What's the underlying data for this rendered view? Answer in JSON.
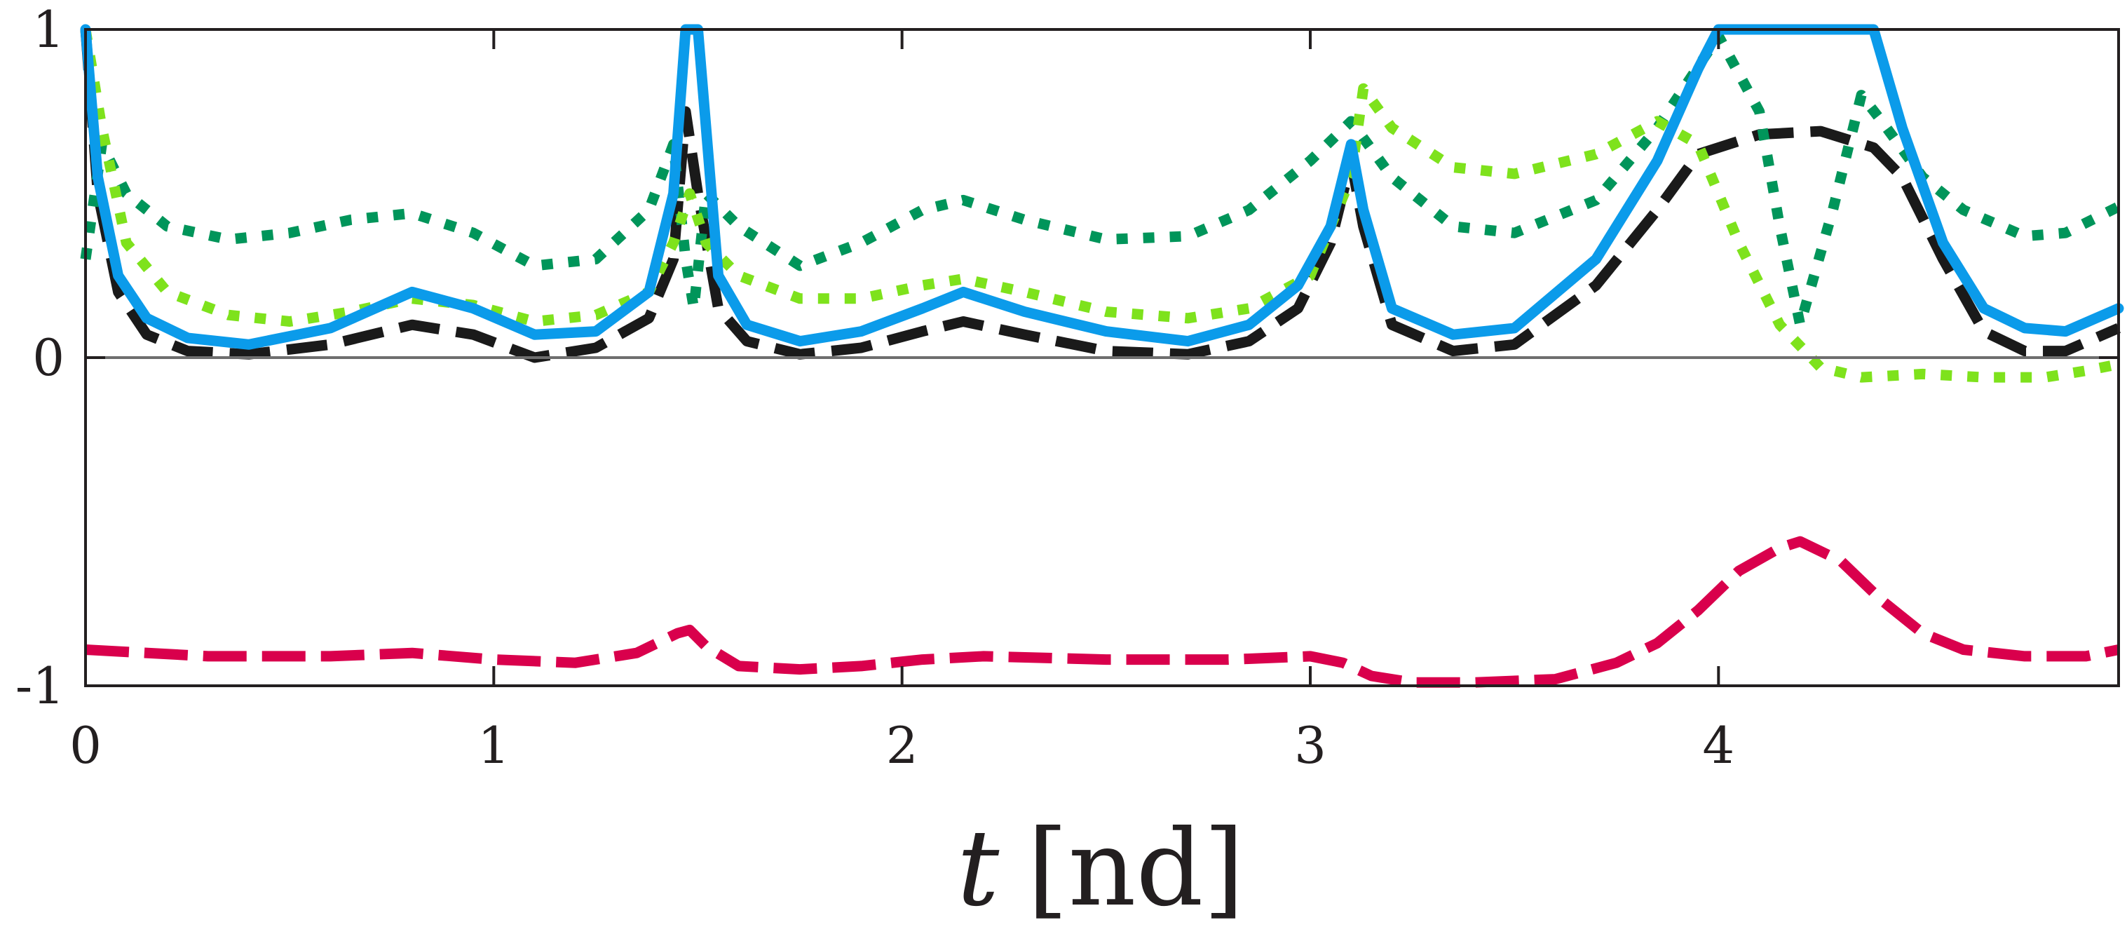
{
  "chart_data": {
    "type": "line",
    "title": "",
    "xlabel_var": "t",
    "xlabel_unit": "[nd]",
    "ylabel": "",
    "xlim": [
      0,
      4.98
    ],
    "ylim": [
      -1,
      1
    ],
    "xticks": [
      0,
      1,
      2,
      3,
      4
    ],
    "xtick_labels": [
      "0",
      "1",
      "2",
      "3",
      "4"
    ],
    "yticks": [
      -1,
      0,
      1
    ],
    "ytick_labels": [
      "-1",
      "0",
      "1"
    ],
    "zero_line": true,
    "grid": false,
    "legend": "none",
    "series": [
      {
        "name": "series-black-dashed",
        "color": "#1a1a1a",
        "style": "dashed",
        "x": [
          0,
          0.03,
          0.08,
          0.15,
          0.25,
          0.4,
          0.6,
          0.8,
          0.95,
          1.1,
          1.25,
          1.38,
          1.44,
          1.47,
          1.5,
          1.55,
          1.62,
          1.75,
          1.9,
          2.05,
          2.15,
          2.3,
          2.5,
          2.7,
          2.85,
          2.97,
          3.05,
          3.1,
          3.13,
          3.2,
          3.35,
          3.5,
          3.7,
          3.85,
          3.95,
          4.1,
          4.25,
          4.38,
          4.45,
          4.55,
          4.65,
          4.75,
          4.85,
          4.98
        ],
        "y": [
          1.0,
          0.5,
          0.2,
          0.07,
          0.02,
          0.01,
          0.04,
          0.1,
          0.07,
          0.0,
          0.03,
          0.12,
          0.3,
          0.75,
          0.5,
          0.15,
          0.05,
          0.01,
          0.03,
          0.08,
          0.11,
          0.07,
          0.02,
          0.01,
          0.05,
          0.15,
          0.35,
          0.6,
          0.4,
          0.1,
          0.02,
          0.04,
          0.22,
          0.45,
          0.62,
          0.68,
          0.69,
          0.64,
          0.55,
          0.3,
          0.08,
          0.02,
          0.02,
          0.09
        ]
      },
      {
        "name": "series-blue-solid",
        "color": "#0b9bea",
        "style": "solid",
        "x": [
          0,
          0.03,
          0.08,
          0.15,
          0.25,
          0.4,
          0.6,
          0.8,
          0.95,
          1.1,
          1.25,
          1.38,
          1.44,
          1.47,
          1.5,
          1.55,
          1.62,
          1.75,
          1.9,
          2.05,
          2.15,
          2.3,
          2.5,
          2.7,
          2.85,
          2.97,
          3.05,
          3.1,
          3.13,
          3.2,
          3.35,
          3.5,
          3.7,
          3.85,
          3.95,
          4.0,
          4.38,
          4.45,
          4.55,
          4.65,
          4.75,
          4.85,
          4.98
        ],
        "y": [
          1.0,
          0.55,
          0.25,
          0.12,
          0.06,
          0.04,
          0.09,
          0.2,
          0.15,
          0.07,
          0.08,
          0.2,
          0.5,
          1.0,
          1.0,
          0.25,
          0.1,
          0.05,
          0.08,
          0.15,
          0.2,
          0.14,
          0.08,
          0.05,
          0.1,
          0.22,
          0.4,
          0.65,
          0.45,
          0.15,
          0.07,
          0.09,
          0.3,
          0.6,
          0.88,
          1.0,
          1.0,
          0.7,
          0.35,
          0.15,
          0.09,
          0.08,
          0.15
        ]
      },
      {
        "name": "series-darkgreen-dotted",
        "color": "#00955a",
        "style": "dotted",
        "x": [
          0,
          0.04,
          0.1,
          0.2,
          0.35,
          0.5,
          0.65,
          0.8,
          0.95,
          1.1,
          1.25,
          1.38,
          1.44,
          1.47,
          1.49,
          1.52,
          1.6,
          1.75,
          1.9,
          2.05,
          2.15,
          2.3,
          2.5,
          2.7,
          2.85,
          3.0,
          3.1,
          3.2,
          3.35,
          3.5,
          3.7,
          3.85,
          4.0,
          4.1,
          4.15,
          4.2,
          4.28,
          4.35,
          4.4,
          4.5,
          4.6,
          4.75,
          4.85,
          4.98
        ],
        "y": [
          0.3,
          0.65,
          0.5,
          0.4,
          0.36,
          0.38,
          0.42,
          0.44,
          0.38,
          0.28,
          0.3,
          0.45,
          0.65,
          0.3,
          0.15,
          0.5,
          0.4,
          0.28,
          0.35,
          0.45,
          0.48,
          0.42,
          0.36,
          0.37,
          0.45,
          0.6,
          0.72,
          0.55,
          0.4,
          0.38,
          0.48,
          0.7,
          0.98,
          0.75,
          0.4,
          0.1,
          0.45,
          0.8,
          0.72,
          0.55,
          0.45,
          0.37,
          0.38,
          0.46
        ]
      },
      {
        "name": "series-lightgreen-dotted",
        "color": "#7ee21c",
        "style": "dotted",
        "x": [
          0,
          0.04,
          0.1,
          0.2,
          0.35,
          0.5,
          0.65,
          0.8,
          0.95,
          1.1,
          1.25,
          1.38,
          1.44,
          1.48,
          1.52,
          1.6,
          1.75,
          1.9,
          2.05,
          2.15,
          2.3,
          2.5,
          2.7,
          2.85,
          3.0,
          3.1,
          3.13,
          3.2,
          3.35,
          3.5,
          3.7,
          3.85,
          3.95,
          4.05,
          4.15,
          4.25,
          4.35,
          4.5,
          4.65,
          4.8,
          4.9,
          4.98
        ],
        "y": [
          1.0,
          0.7,
          0.35,
          0.2,
          0.13,
          0.11,
          0.14,
          0.18,
          0.16,
          0.11,
          0.13,
          0.2,
          0.35,
          0.5,
          0.35,
          0.25,
          0.18,
          0.18,
          0.22,
          0.24,
          0.2,
          0.14,
          0.12,
          0.15,
          0.25,
          0.55,
          0.82,
          0.7,
          0.58,
          0.56,
          0.62,
          0.72,
          0.65,
          0.35,
          0.1,
          -0.03,
          -0.06,
          -0.05,
          -0.06,
          -0.06,
          -0.04,
          -0.02
        ]
      },
      {
        "name": "series-crimson-dashed",
        "color": "#d9004c",
        "style": "dashdot",
        "x": [
          0,
          0.3,
          0.6,
          0.8,
          1.0,
          1.2,
          1.35,
          1.45,
          1.48,
          1.52,
          1.6,
          1.75,
          1.9,
          2.05,
          2.2,
          2.5,
          2.8,
          3.0,
          3.08,
          3.15,
          3.25,
          3.4,
          3.6,
          3.75,
          3.85,
          3.95,
          4.05,
          4.15,
          4.2,
          4.3,
          4.4,
          4.5,
          4.6,
          4.75,
          4.9,
          4.98
        ],
        "y": [
          -0.89,
          -0.91,
          -0.91,
          -0.9,
          -0.92,
          -0.93,
          -0.9,
          -0.84,
          -0.83,
          -0.88,
          -0.94,
          -0.95,
          -0.94,
          -0.92,
          -0.91,
          -0.92,
          -0.92,
          -0.91,
          -0.93,
          -0.97,
          -0.99,
          -0.99,
          -0.98,
          -0.93,
          -0.87,
          -0.77,
          -0.65,
          -0.58,
          -0.56,
          -0.62,
          -0.74,
          -0.84,
          -0.89,
          -0.91,
          -0.91,
          -0.89
        ]
      }
    ]
  }
}
